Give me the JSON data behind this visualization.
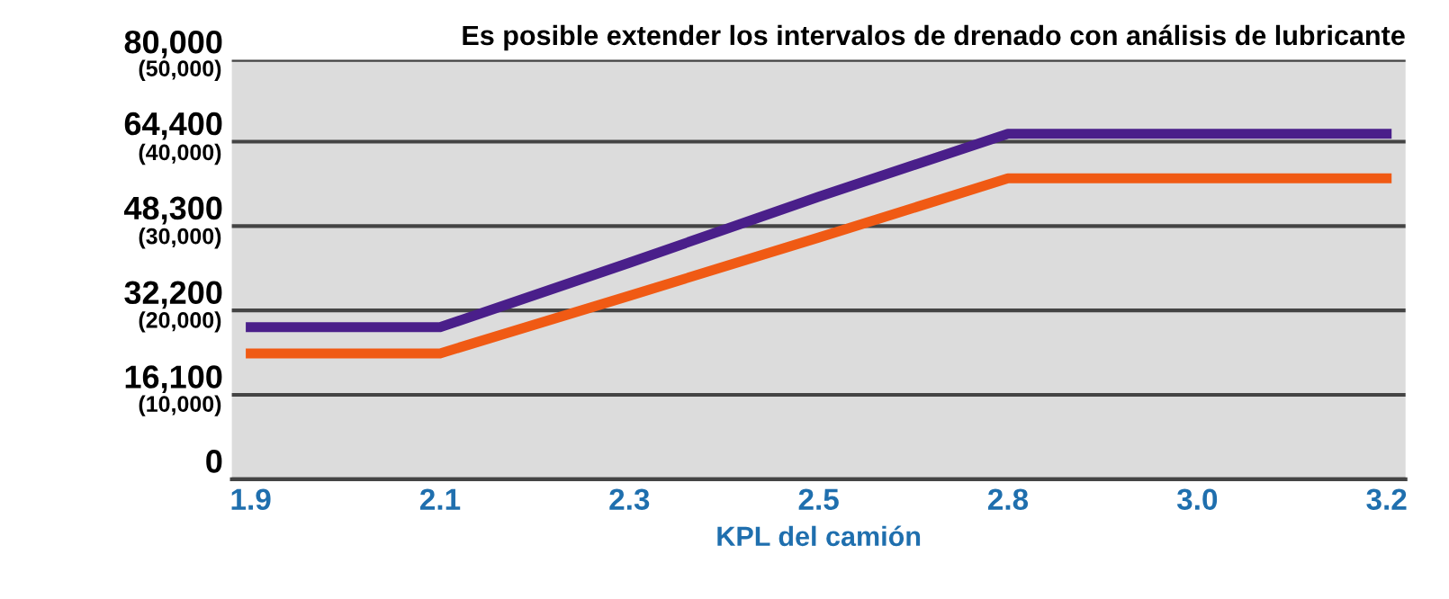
{
  "chart_data": {
    "type": "line",
    "title": "Es posible extender los intervalos de drenado con análisis de lubricante",
    "xlabel": "KPL del camión",
    "categories": [
      "1.9",
      "2.1",
      "2.3",
      "2.5",
      "2.8",
      "3.0",
      "3.2"
    ],
    "series": [
      {
        "color": "#4a1f8a",
        "values": [
          29000,
          29000,
          41300,
          53900,
          65900,
          65900,
          65900
        ]
      },
      {
        "color": "#f05a14",
        "values": [
          24000,
          24000,
          35000,
          46100,
          57400,
          57400,
          57400
        ]
      }
    ],
    "ylim": [
      0,
      80000
    ],
    "yticks": [
      0,
      {
        "value": 16100,
        "label": "16,100"
      },
      {
        "value": 32200,
        "label": "32,200"
      },
      {
        "value": 48300,
        "label": "48,300"
      },
      {
        "value": 64400,
        "label": "64,400"
      },
      {
        "value": 80000,
        "label": "80,000"
      }
    ],
    "y2lim": [
      0,
      50000
    ],
    "y2ticks": [
      {
        "value": 10000,
        "label": "(10,000)"
      },
      {
        "value": 20000,
        "label": "(20,000)"
      },
      {
        "value": 30000,
        "label": "(30,000)"
      },
      {
        "value": 40000,
        "label": "(40,000)"
      },
      {
        "value": 50000,
        "label": "(50,000)"
      }
    ],
    "grid": "y",
    "legend": false,
    "marker": "none",
    "line_style": "solid"
  }
}
